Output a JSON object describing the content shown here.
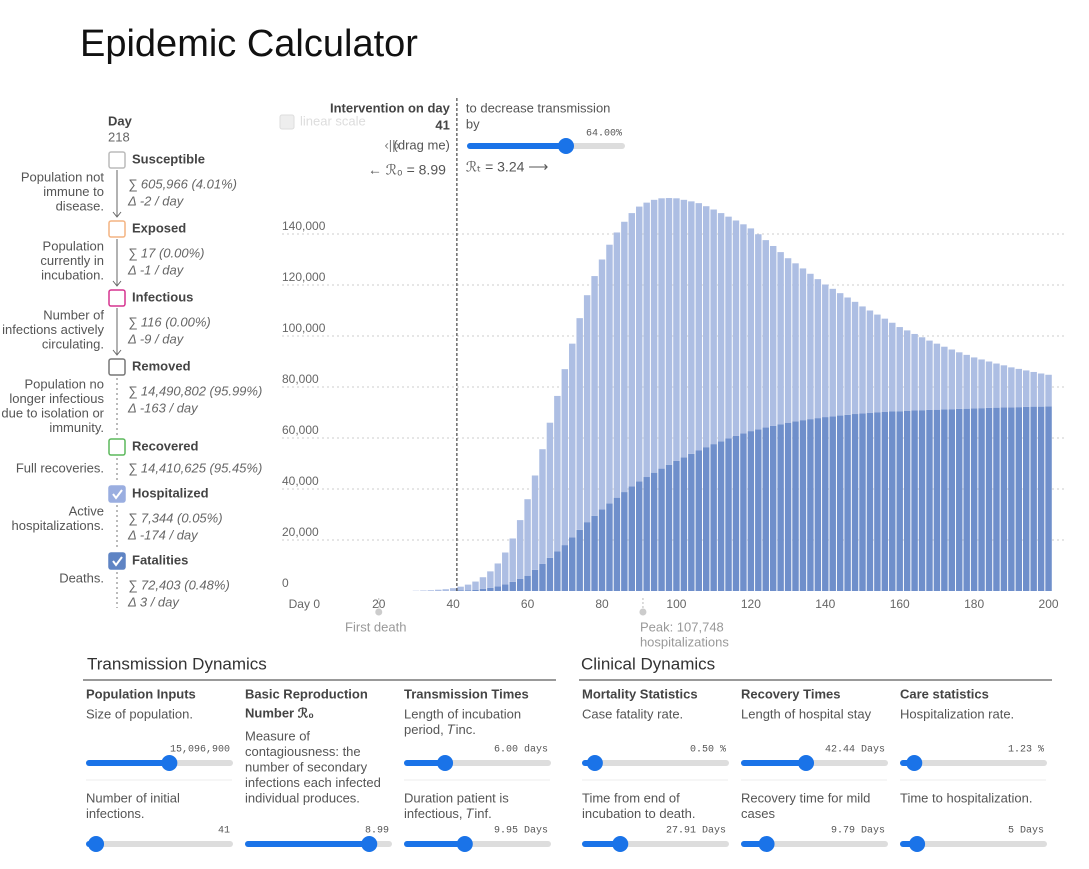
{
  "header": {
    "title": "Epidemic Calculator"
  },
  "sidebar": {
    "day_label": "Day",
    "day": "218",
    "compartments": [
      {
        "name": "Susceptible",
        "color": "#bbbbbb",
        "checked": false,
        "description": [
          "Population not",
          "immune to",
          "disease."
        ],
        "stats": [
          "∑ 605,966 (4.01%)",
          "Δ -2 / day"
        ]
      },
      {
        "name": "Exposed",
        "color": "#f4b482",
        "checked": false,
        "description": [
          "Population",
          "currently in",
          "incubation."
        ],
        "stats": [
          "∑ 17 (0.00%)",
          "Δ -1 / day"
        ]
      },
      {
        "name": "Infectious",
        "color": "#d6338f",
        "checked": false,
        "description": [
          "Number of",
          "infections actively",
          "circulating."
        ],
        "stats": [
          "∑ 116 (0.00%)",
          "Δ -9 / day"
        ]
      },
      {
        "name": "Removed",
        "color": "#777777",
        "checked": false,
        "description": [
          "Population no",
          "longer infectious",
          "due to isolation or",
          "immunity."
        ],
        "stats": [
          "∑ 14,490,802 (95.99%)",
          "Δ -163 / day"
        ]
      },
      {
        "name": "Recovered",
        "color": "#5cb85c",
        "checked": false,
        "description": [
          "Full recoveries."
        ],
        "stats": [
          "∑ 14,410,625 (95.45%)"
        ]
      },
      {
        "name": "Hospitalized",
        "color": "#9aaee0",
        "checked": true,
        "description": [
          "Active",
          "hospitalizations."
        ],
        "stats": [
          "∑ 7,344 (0.05%)",
          "Δ -174 / day"
        ]
      },
      {
        "name": "Fatalities",
        "color": "#5f84c4",
        "checked": true,
        "description": [
          "Deaths."
        ],
        "stats": [
          "∑ 72,403 (0.48%)",
          "Δ 3 / day"
        ]
      }
    ]
  },
  "scale_toggle": "linear scale",
  "intervention": {
    "label": "Intervention on day",
    "day": 41,
    "handle": "‹||›",
    "drag": "(drag me)",
    "r0": "← ℛ₀ = 8.99",
    "description": [
      "to decrease transmission",
      "by"
    ],
    "slider_value": "64.00%",
    "rt": "ℛₜ = 3.24 ⟶"
  },
  "chart_data": {
    "type": "bar",
    "stacked": true,
    "x": [
      0,
      2,
      4,
      6,
      8,
      10,
      12,
      14,
      16,
      18,
      20,
      22,
      24,
      26,
      28,
      30,
      32,
      34,
      36,
      38,
      40,
      42,
      44,
      46,
      48,
      50,
      52,
      54,
      56,
      58,
      60,
      62,
      64,
      66,
      68,
      70,
      72,
      74,
      76,
      78,
      80,
      82,
      84,
      86,
      88,
      90,
      92,
      94,
      96,
      98,
      100,
      102,
      104,
      106,
      108,
      110,
      112,
      114,
      116,
      118,
      120,
      122,
      124,
      126,
      128,
      130,
      132,
      134,
      136,
      138,
      140,
      142,
      144,
      146,
      148,
      150,
      152,
      154,
      156,
      158,
      160,
      162,
      164,
      166,
      168,
      170,
      172,
      174,
      176,
      178,
      180,
      182,
      184,
      186,
      188,
      190,
      192,
      194,
      196,
      198,
      200
    ],
    "series": [
      {
        "color": "#6f8fcb",
        "values": [
          0,
          0,
          0,
          0,
          0,
          0,
          0,
          0,
          0,
          0,
          0,
          0,
          0,
          0,
          0,
          0,
          0,
          0,
          0,
          0,
          100,
          200,
          300,
          500,
          800,
          1200,
          1800,
          2600,
          3600,
          4800,
          6000,
          8300,
          10600,
          13000,
          15500,
          18000,
          21000,
          24000,
          27000,
          29500,
          32000,
          34300,
          36600,
          38800,
          41000,
          43000,
          44700,
          46400,
          48000,
          49500,
          51000,
          52400,
          53800,
          55100,
          56400,
          57600,
          58700,
          59800,
          60800,
          61800,
          62700,
          63400,
          64100,
          64800,
          65400,
          66000,
          66500,
          67000,
          67400,
          67800,
          68200,
          68500,
          68800,
          69100,
          69400,
          69600,
          69800,
          70000,
          70200,
          70400,
          70500,
          70700,
          70800,
          70900,
          71000,
          71100,
          71200,
          71300,
          71400,
          71500,
          71600,
          71700,
          71800,
          71900,
          72000,
          72000,
          72100,
          72200,
          72300,
          72300,
          72400
        ]
      },
      {
        "color": "#adbee3",
        "values": [
          0,
          0,
          0,
          0,
          0,
          0,
          0,
          0,
          0,
          0,
          0,
          0,
          0,
          0,
          0,
          100,
          200,
          300,
          500,
          700,
          1000,
          1500,
          2200,
          3200,
          4600,
          6500,
          9000,
          12500,
          17000,
          23000,
          30000,
          37000,
          45000,
          53000,
          61000,
          69000,
          76000,
          83000,
          89000,
          94000,
          98000,
          101500,
          104000,
          106000,
          107200,
          107748,
          107600,
          107000,
          106000,
          104600,
          103000,
          101000,
          99000,
          97000,
          94500,
          92000,
          89500,
          87000,
          84500,
          82000,
          79500,
          76500,
          73500,
          70500,
          67500,
          64500,
          62000,
          59500,
          57000,
          54500,
          52000,
          50000,
          48000,
          46000,
          44000,
          42000,
          40200,
          38400,
          36600,
          34800,
          33000,
          31500,
          30000,
          28600,
          27200,
          25900,
          24600,
          23400,
          22200,
          21100,
          20000,
          19100,
          18200,
          17300,
          16500,
          15700,
          15000,
          14300,
          13600,
          13000,
          12400
        ]
      }
    ],
    "xlim": [
      -6,
      202
    ],
    "ylim": [
      0,
      160000
    ],
    "xticks": [
      {
        "value": 0,
        "label": "Day 0"
      },
      20,
      40,
      60,
      80,
      100,
      120,
      140,
      160,
      180,
      200
    ],
    "yticks": [
      0,
      {
        "value": 20000,
        "label": "20,000"
      },
      {
        "value": 40000,
        "label": "40,000"
      },
      {
        "value": 60000,
        "label": "60,000"
      },
      {
        "value": 80000,
        "label": "80,000"
      },
      {
        "value": 100000,
        "label": "100,000"
      },
      {
        "value": 120000,
        "label": "120,000"
      },
      {
        "value": 140000,
        "label": "140,000"
      }
    ],
    "grid": true,
    "annotations": [
      {
        "x": 20,
        "lines": [
          "First death"
        ]
      },
      {
        "x": 91,
        "lines": [
          "Peak: 107,748",
          "hospitalizations"
        ]
      }
    ]
  },
  "parameters": [
    {
      "heading": "Transmission Dynamics",
      "columns": [
        {
          "title": [
            "Population Inputs"
          ],
          "items": [
            {
              "description": [
                "Size of population."
              ],
              "value": "15,096,900"
            },
            {
              "description": [
                "Number of initial",
                "infections."
              ],
              "value": "41"
            }
          ]
        },
        {
          "title": [
            "Basic Reproduction",
            "Number ℛ₀"
          ],
          "items": [
            {
              "description": [
                "Measure of",
                "contagiousness: the",
                "number of secondary",
                "infections each infected",
                "individual produces."
              ],
              "value": "8.99"
            }
          ]
        },
        {
          "title": [
            "Transmission Times"
          ],
          "items": [
            {
              "description": [
                "Length of incubation",
                "period, 𝑇inc."
              ],
              "value": "6.00 days"
            },
            {
              "description": [
                "Duration patient is",
                "infectious, 𝑇inf."
              ],
              "value": "9.95 Days"
            }
          ]
        }
      ]
    },
    {
      "heading": "Clinical Dynamics",
      "columns": [
        {
          "title": [
            "Mortality Statistics"
          ],
          "items": [
            {
              "description": [
                "Case fatality rate."
              ],
              "value": "0.50 %"
            },
            {
              "description": [
                "Time from end of",
                "incubation to death."
              ],
              "value": "27.91 Days"
            }
          ]
        },
        {
          "title": [
            "Recovery Times"
          ],
          "items": [
            {
              "description": [
                "Length of hospital stay"
              ],
              "value": "42.44 Days"
            },
            {
              "description": [
                "Recovery time for mild",
                "cases"
              ],
              "value": "9.79 Days"
            }
          ]
        },
        {
          "title": [
            "Care statistics"
          ],
          "items": [
            {
              "description": [
                "Hospitalization rate."
              ],
              "value": "1.23 %"
            },
            {
              "description": [
                "Time to hospitalization."
              ],
              "value": "5 Days"
            }
          ]
        }
      ]
    }
  ]
}
